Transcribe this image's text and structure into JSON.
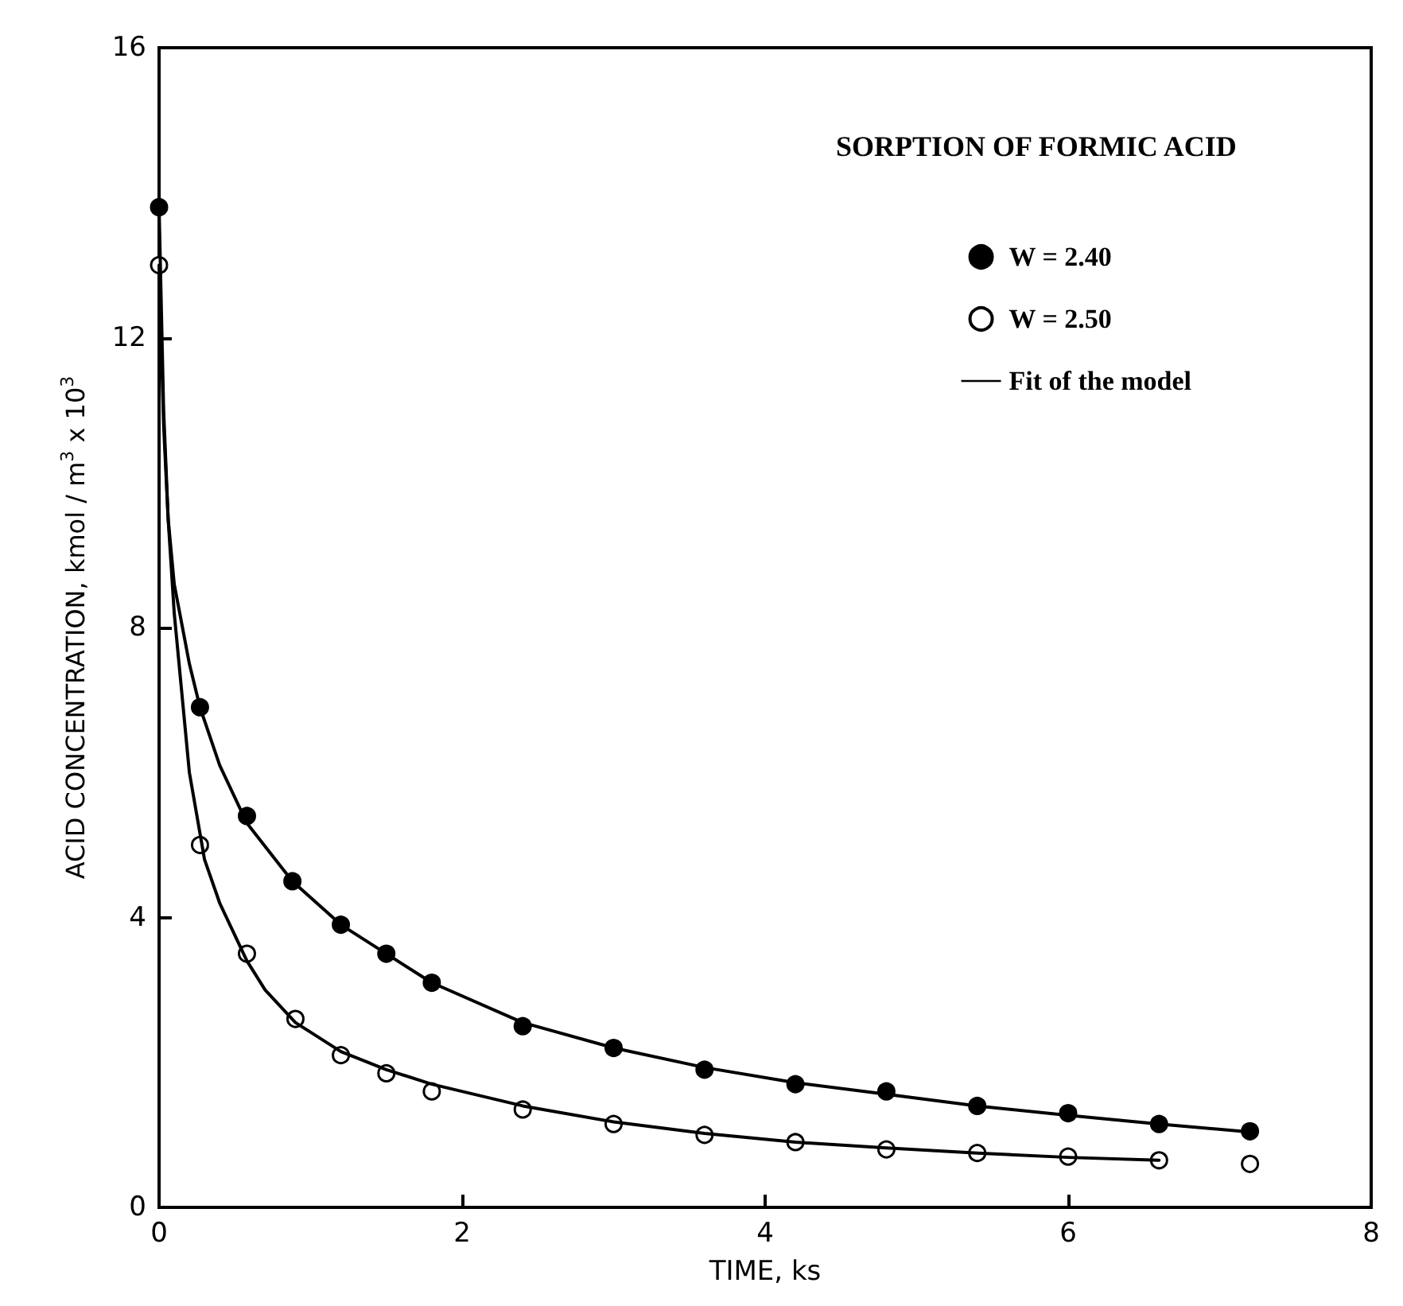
{
  "chart_data": {
    "type": "scatter",
    "title": "SORPTION OF FORMIC ACID",
    "xlabel": "TIME, ks",
    "ylabel": "ACID CONCENTRATION, kmol / m$^{3}$ x 10$^{3}$",
    "xlim": [
      0,
      8
    ],
    "xticks": [
      0,
      2,
      4,
      6,
      8
    ],
    "ylim": [
      0,
      16
    ],
    "yticks": [
      0,
      4,
      8,
      12,
      16
    ],
    "grid": false,
    "legend": "top right",
    "marker": "circle",
    "series": [
      {
        "name": "W = 2.40",
        "color": "#000000",
        "x": [
          0,
          0.27,
          0.58,
          0.88,
          1.2,
          1.5,
          1.8,
          2.4,
          3.0,
          3.6,
          4.2,
          4.8,
          5.4,
          6.0,
          6.6,
          7.2
        ],
        "values": [
          13.8,
          6.9,
          5.4,
          4.5,
          3.9,
          3.5,
          3.1,
          2.5,
          2.2,
          1.9,
          1.7,
          1.6,
          1.4,
          1.3,
          1.15,
          1.05
        ]
      },
      {
        "name": "W = 2.50",
        "color": "#ffffff",
        "x": [
          0,
          0.27,
          0.58,
          0.9,
          1.2,
          1.5,
          1.8,
          2.4,
          3.0,
          3.6,
          4.2,
          4.8,
          5.4,
          6.0,
          6.6,
          7.2
        ],
        "values": [
          13.0,
          5.0,
          3.5,
          2.6,
          2.1,
          1.85,
          1.6,
          1.35,
          1.15,
          1.0,
          0.9,
          0.8,
          0.75,
          0.7,
          0.65,
          0.6
        ]
      },
      {
        "name": "Fit of the model",
        "type": "line",
        "color": "#000000",
        "marker": "none",
        "x": [
          0,
          0.03,
          0.06,
          0.1,
          0.2,
          0.27,
          0.4,
          0.58,
          0.88,
          1.2,
          1.5,
          1.8,
          2.4,
          3.0,
          3.6,
          4.2,
          4.8,
          5.4,
          6.0,
          6.6,
          7.2
        ],
        "values": [
          13.8,
          11,
          9.5,
          8.6,
          7.5,
          6.9,
          6.1,
          5.3,
          4.5,
          3.9,
          3.5,
          3.1,
          2.55,
          2.2,
          1.93,
          1.72,
          1.56,
          1.4,
          1.27,
          1.15,
          1.04
        ]
      },
      {
        "type": "line",
        "color": "#000000",
        "marker": "none",
        "x": [
          0,
          0.03,
          0.06,
          0.1,
          0.2,
          0.3,
          0.4,
          0.58,
          0.7,
          0.9,
          1.2,
          1.5,
          1.8,
          2.4,
          3.0,
          3.6,
          4.2,
          4.8,
          5.4,
          6.0,
          6.6
        ],
        "values": [
          13.0,
          10.8,
          9.5,
          8.2,
          6.0,
          4.8,
          4.2,
          3.4,
          3.0,
          2.55,
          2.15,
          1.9,
          1.7,
          1.4,
          1.18,
          1.02,
          0.9,
          0.82,
          0.75,
          0.69,
          0.65
        ]
      }
    ]
  }
}
